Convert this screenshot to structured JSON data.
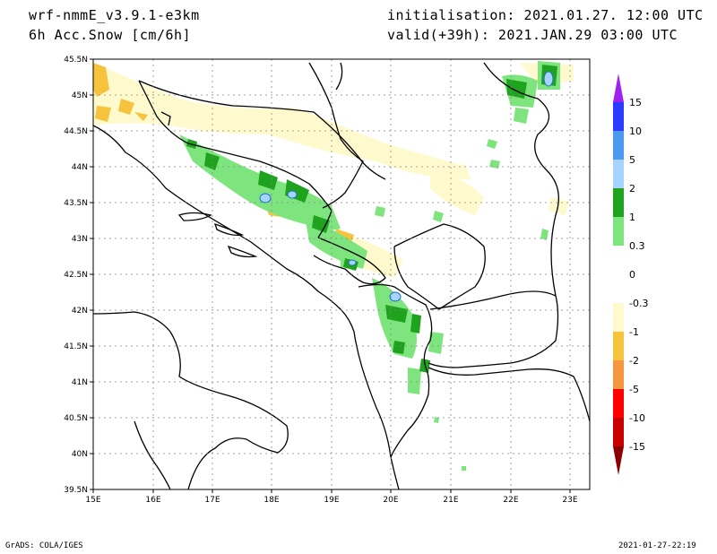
{
  "header": {
    "model": "wrf-nmmE_v3.9.1-e3km",
    "field": "6h Acc.Snow [cm/6h]",
    "init": "initialisation: 2021.01.27.  12:00 UTC",
    "valid": "valid(+39h): 2021.JAN.29 03:00 UTC"
  },
  "map": {
    "lat_labels": [
      "45.5N",
      "45N",
      "44.5N",
      "44N",
      "43.5N",
      "43N",
      "42.5N",
      "42N",
      "41.5N",
      "41N",
      "40.5N",
      "40N",
      "39.5N"
    ],
    "lon_labels": [
      "15E",
      "16E",
      "17E",
      "18E",
      "19E",
      "20E",
      "21E",
      "22E",
      "23E"
    ]
  },
  "legend": {
    "labels": [
      "15",
      "10",
      "5",
      "2",
      "1",
      "0.3",
      "0",
      "-0.3",
      "-1",
      "-2",
      "-5",
      "-10",
      "-15"
    ],
    "colors": [
      "#a020f0",
      "#2b3bff",
      "#4a9bf0",
      "#a6d4ff",
      "#1fa31f",
      "#7ee57e",
      "#ffffff",
      "#fffacd",
      "#f6c33c",
      "#f59640",
      "#ff0000",
      "#c80000",
      "#8c0000"
    ]
  },
  "footer": {
    "credit": "GrADS: COLA/IGES",
    "timestamp": "2021-01-27-22:19"
  }
}
